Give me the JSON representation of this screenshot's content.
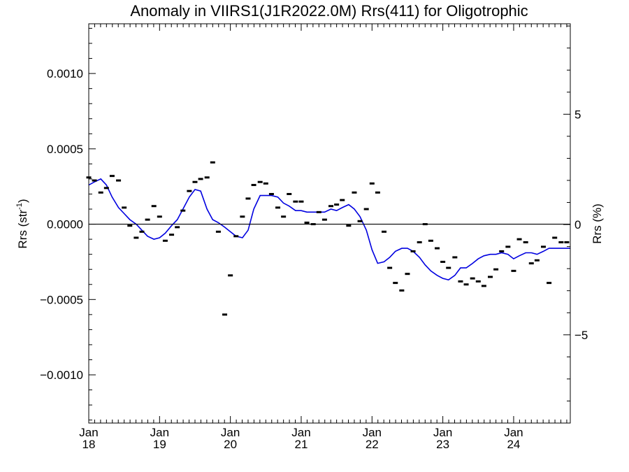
{
  "chart_data": {
    "type": "line",
    "title": "Anomaly in VIIRS1(J1R2022.0M) Rrs(411) for Oligotrophic",
    "ylabel_base": "Rrs (str",
    "ylabel_sup": "-1",
    "ylabel_end": ")",
    "ylabel_right": "Rrs (%)",
    "xlim": [
      2018.0,
      2024.8
    ],
    "ylim": [
      -0.00132,
      0.00133
    ],
    "ylim_right": [
      -9.0,
      9.1
    ],
    "left_ticks": [
      {
        "value": 0.001,
        "label": "0.0010"
      },
      {
        "value": 0.0005,
        "label": "0.0005"
      },
      {
        "value": 0.0,
        "label": "0.0000"
      },
      {
        "value": -0.0005,
        "label": "−0.0005"
      },
      {
        "value": -0.001,
        "label": "−0.0010"
      }
    ],
    "right_ticks": [
      {
        "value": 5,
        "label": "5"
      },
      {
        "value": 0,
        "label": "0"
      },
      {
        "value": -5,
        "label": "−5"
      }
    ],
    "x_ticks": [
      {
        "value": 2018.0,
        "month": "Jan",
        "year": "18"
      },
      {
        "value": 2019.0,
        "month": "Jan",
        "year": "19"
      },
      {
        "value": 2020.0,
        "month": "Jan",
        "year": "20"
      },
      {
        "value": 2021.0,
        "month": "Jan",
        "year": "21"
      },
      {
        "value": 2022.0,
        "month": "Jan",
        "year": "22"
      },
      {
        "value": 2023.0,
        "month": "Jan",
        "year": "23"
      },
      {
        "value": 2024.0,
        "month": "Jan",
        "year": "24"
      }
    ],
    "zero_line": true,
    "line_color": "#0000e0",
    "marker_color": "#000000",
    "monthly_points": {
      "x": [
        2018.0,
        2018.08,
        2018.17,
        2018.25,
        2018.33,
        2018.42,
        2018.5,
        2018.58,
        2018.67,
        2018.75,
        2018.83,
        2018.92,
        2019.0,
        2019.08,
        2019.17,
        2019.25,
        2019.33,
        2019.42,
        2019.5,
        2019.58,
        2019.67,
        2019.75,
        2019.83,
        2019.92,
        2020.0,
        2020.08,
        2020.17,
        2020.25,
        2020.33,
        2020.42,
        2020.5,
        2020.58,
        2020.67,
        2020.75,
        2020.83,
        2020.92,
        2021.0,
        2021.08,
        2021.17,
        2021.25,
        2021.33,
        2021.42,
        2021.5,
        2021.58,
        2021.67,
        2021.75,
        2021.83,
        2021.92,
        2022.0,
        2022.08,
        2022.17,
        2022.25,
        2022.33,
        2022.42,
        2022.5,
        2022.58,
        2022.67,
        2022.75,
        2022.83,
        2022.92,
        2023.0,
        2023.08,
        2023.17,
        2023.25,
        2023.33,
        2023.42,
        2023.5,
        2023.58,
        2023.67,
        2023.75,
        2023.83,
        2023.92,
        2024.0,
        2024.08,
        2024.17,
        2024.25,
        2024.33,
        2024.42,
        2024.5,
        2024.58,
        2024.67,
        2024.75
      ],
      "y": [
        0.00031,
        0.00029,
        0.00021,
        0.00024,
        0.00032,
        0.00029,
        0.00011,
        -1e-05,
        -9e-05,
        -5e-05,
        3e-05,
        0.00012,
        5e-05,
        -0.00011,
        -7e-05,
        -2e-05,
        9e-05,
        0.00022,
        0.00028,
        0.0003,
        0.00031,
        0.00041,
        -5e-05,
        -0.0006,
        -0.00034,
        -8e-05,
        5e-05,
        0.00017,
        0.00026,
        0.00028,
        0.00027,
        0.0002,
        0.00011,
        5e-05,
        0.0002,
        0.00015,
        0.00015,
        1e-05,
        0.0,
        8e-05,
        3e-05,
        0.00012,
        0.00013,
        0.00016,
        -1e-05,
        0.00021,
        2e-05,
        0.0001,
        0.00027,
        0.00021,
        -5e-05,
        -0.00029,
        -0.00039,
        -0.00044,
        -0.00033,
        -0.00018,
        -0.00012,
        0.0,
        -0.00011,
        -0.00016,
        -0.00025,
        -0.00029,
        -0.00022,
        -0.00038,
        -0.0004,
        -0.00036,
        -0.00038,
        -0.00041,
        -0.00035,
        -0.0003,
        -0.00018,
        -0.00015,
        -0.00031,
        -0.0001,
        -0.00012,
        -0.00026,
        -0.00024,
        -0.00015,
        -0.00039,
        -9e-05,
        -0.00012,
        -0.00012
      ]
    },
    "smoothed_line": {
      "x": [
        2018.0,
        2018.08,
        2018.17,
        2018.25,
        2018.33,
        2018.42,
        2018.5,
        2018.58,
        2018.67,
        2018.75,
        2018.83,
        2018.92,
        2019.0,
        2019.08,
        2019.17,
        2019.25,
        2019.33,
        2019.42,
        2019.5,
        2019.58,
        2019.67,
        2019.75,
        2019.83,
        2019.92,
        2020.0,
        2020.08,
        2020.17,
        2020.25,
        2020.33,
        2020.42,
        2020.5,
        2020.58,
        2020.67,
        2020.75,
        2020.83,
        2020.92,
        2021.0,
        2021.08,
        2021.17,
        2021.25,
        2021.33,
        2021.42,
        2021.5,
        2021.58,
        2021.67,
        2021.75,
        2021.83,
        2021.92,
        2022.0,
        2022.08,
        2022.17,
        2022.25,
        2022.33,
        2022.42,
        2022.5,
        2022.58,
        2022.67,
        2022.75,
        2022.83,
        2022.92,
        2023.0,
        2023.08,
        2023.17,
        2023.25,
        2023.33,
        2023.42,
        2023.5,
        2023.58,
        2023.67,
        2023.75,
        2023.83,
        2023.92,
        2024.0,
        2024.08,
        2024.17,
        2024.25,
        2024.33,
        2024.42,
        2024.5,
        2024.58,
        2024.67,
        2024.75,
        2024.8
      ],
      "y": [
        0.00026,
        0.00028,
        0.0003,
        0.00026,
        0.00018,
        0.00011,
        7e-05,
        3e-05,
        -0.0,
        -4e-05,
        -8e-05,
        -0.0001,
        -9e-05,
        -6e-05,
        -1e-05,
        3e-05,
        0.0001,
        0.00018,
        0.00023,
        0.00022,
        0.0001,
        3e-05,
        1e-05,
        -2e-05,
        -5e-05,
        -8e-05,
        -9e-05,
        -4e-05,
        0.0001,
        0.00019,
        0.00019,
        0.00019,
        0.00018,
        0.00014,
        0.00012,
        9e-05,
        9e-05,
        8e-05,
        8e-05,
        8e-05,
        8e-05,
        0.0001,
        9e-05,
        0.00011,
        0.00013,
        0.0001,
        5e-05,
        -4e-05,
        -0.00017,
        -0.00026,
        -0.00025,
        -0.00022,
        -0.00018,
        -0.00016,
        -0.00016,
        -0.00018,
        -0.00022,
        -0.00027,
        -0.00031,
        -0.00034,
        -0.00036,
        -0.00037,
        -0.00034,
        -0.00029,
        -0.00029,
        -0.00026,
        -0.00023,
        -0.00021,
        -0.0002,
        -0.0002,
        -0.00019,
        -0.0002,
        -0.00023,
        -0.00021,
        -0.00019,
        -0.00019,
        -0.0002,
        -0.00018,
        -0.00016,
        -0.00016,
        -0.00016,
        -0.00016,
        -0.00016
      ]
    }
  }
}
